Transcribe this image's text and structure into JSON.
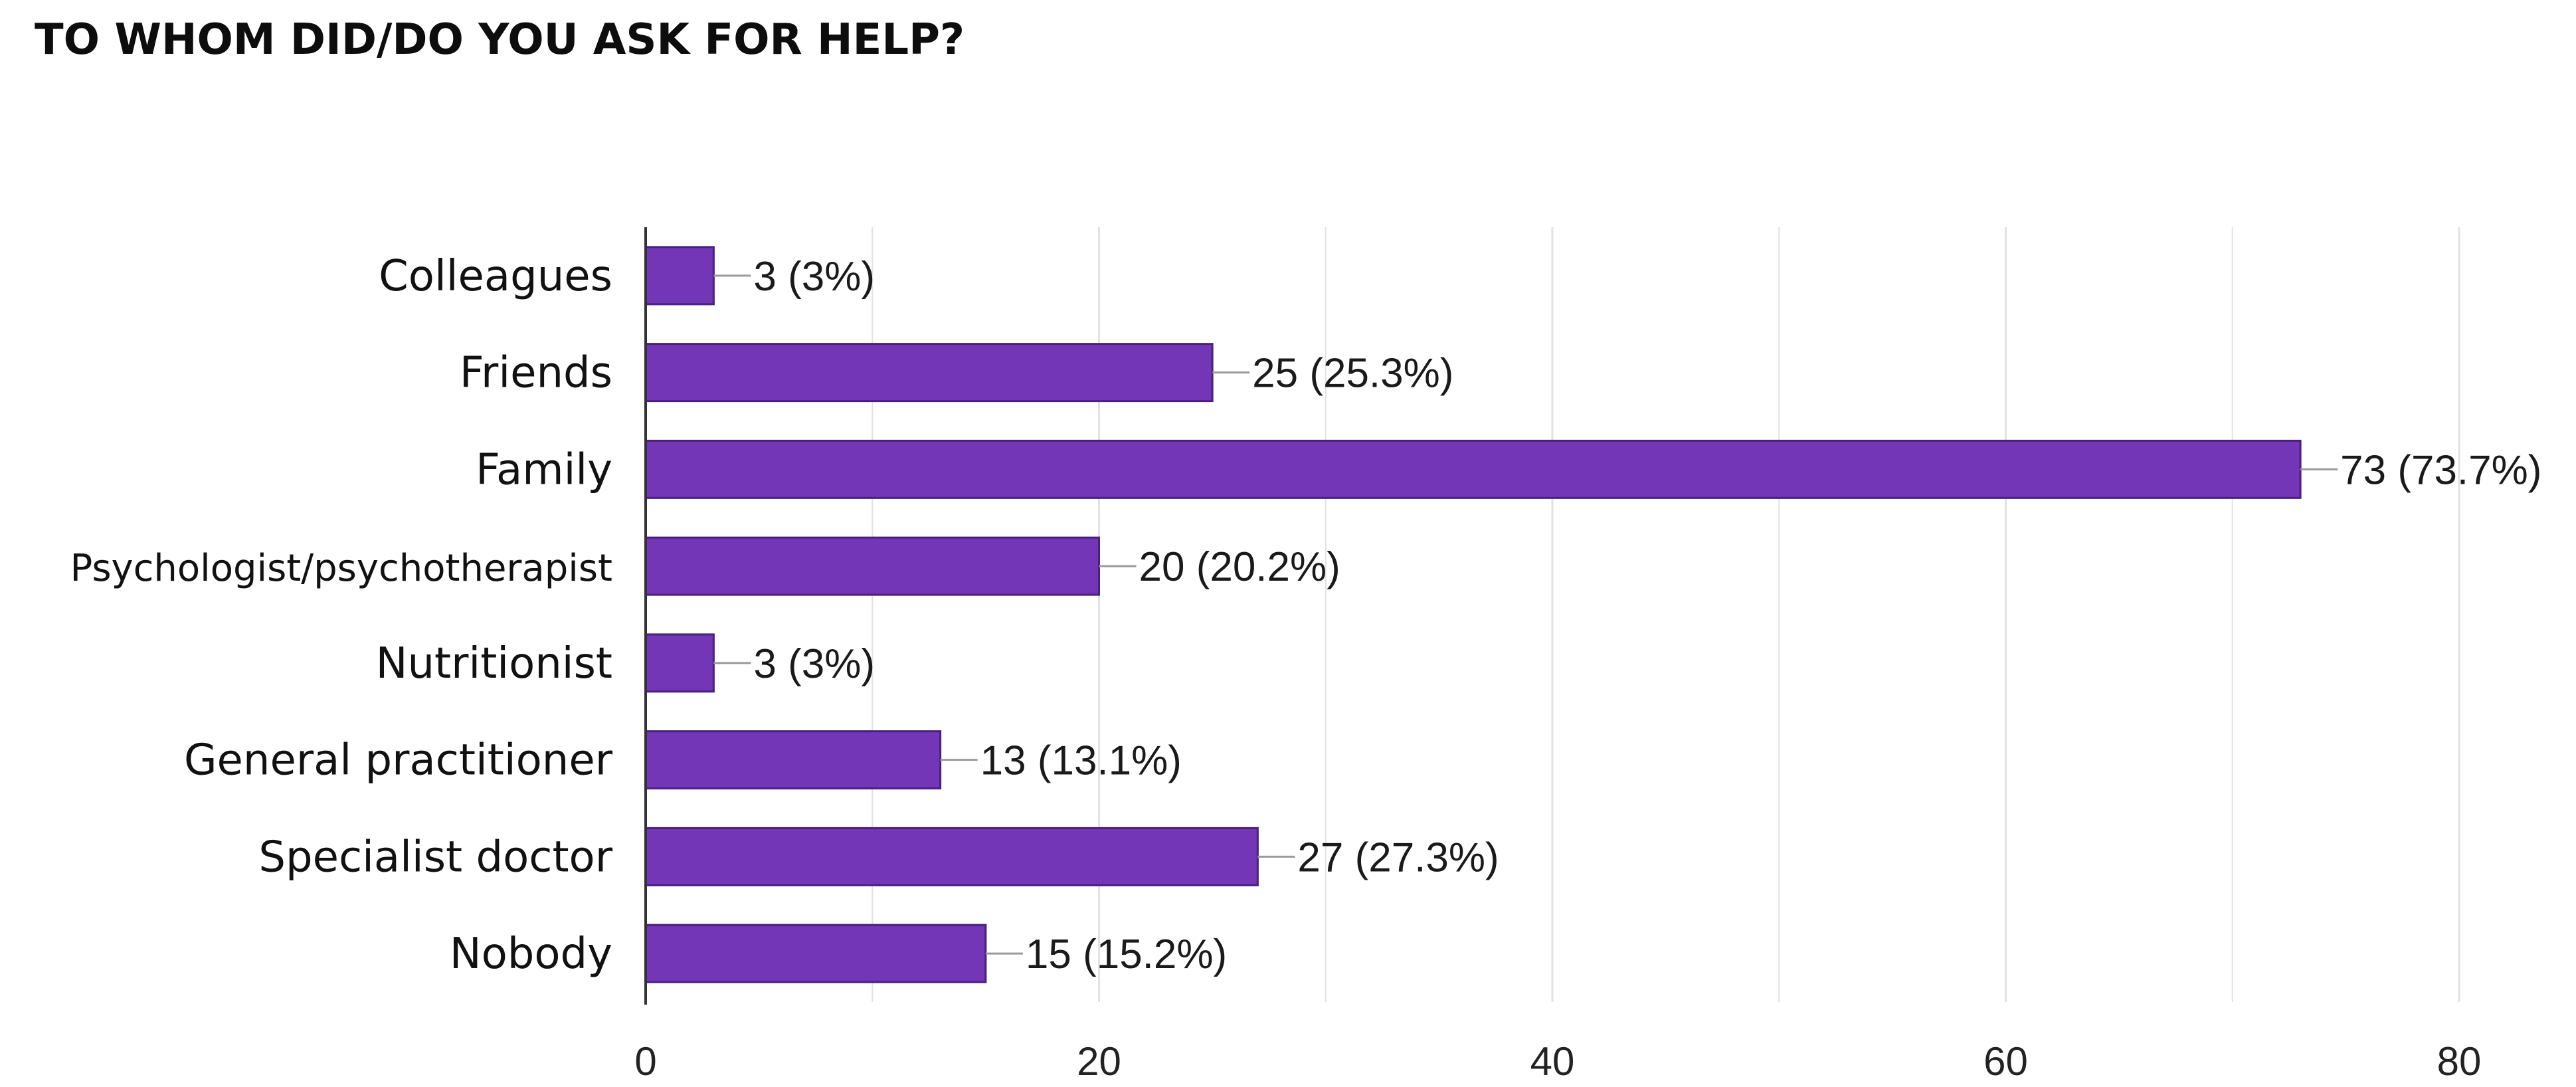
{
  "chart_data": {
    "type": "bar",
    "orientation": "horizontal",
    "title": "TO WHOM DID/DO YOU ASK FOR HELP?",
    "xlabel": "",
    "ylabel": "",
    "categories": [
      "Colleagues",
      "Friends",
      "Family",
      "Psychologist/psychotherapist",
      "Nutritionist",
      "General practitioner",
      "Specialist doctor",
      "Nobody"
    ],
    "values": [
      3,
      25,
      73,
      20,
      3,
      13,
      27,
      15
    ],
    "value_labels": [
      "3 (3%)",
      "25 (25.3%)",
      "73 (73.7%)",
      "20 (20.2%)",
      "3 (3%)",
      "13 (13.1%)",
      "27 (27.3%)",
      "15 (15.2%)"
    ],
    "xlim": [
      0,
      80
    ],
    "xticks": [
      0,
      20,
      40,
      60,
      80
    ],
    "grid": true,
    "legend": "none",
    "colors": {
      "bar": "#7236b6",
      "bar_edge": "#4a1f80",
      "gridline": "#e2e2e2",
      "axis": "#333333",
      "leader": "#9a9a9a"
    }
  }
}
